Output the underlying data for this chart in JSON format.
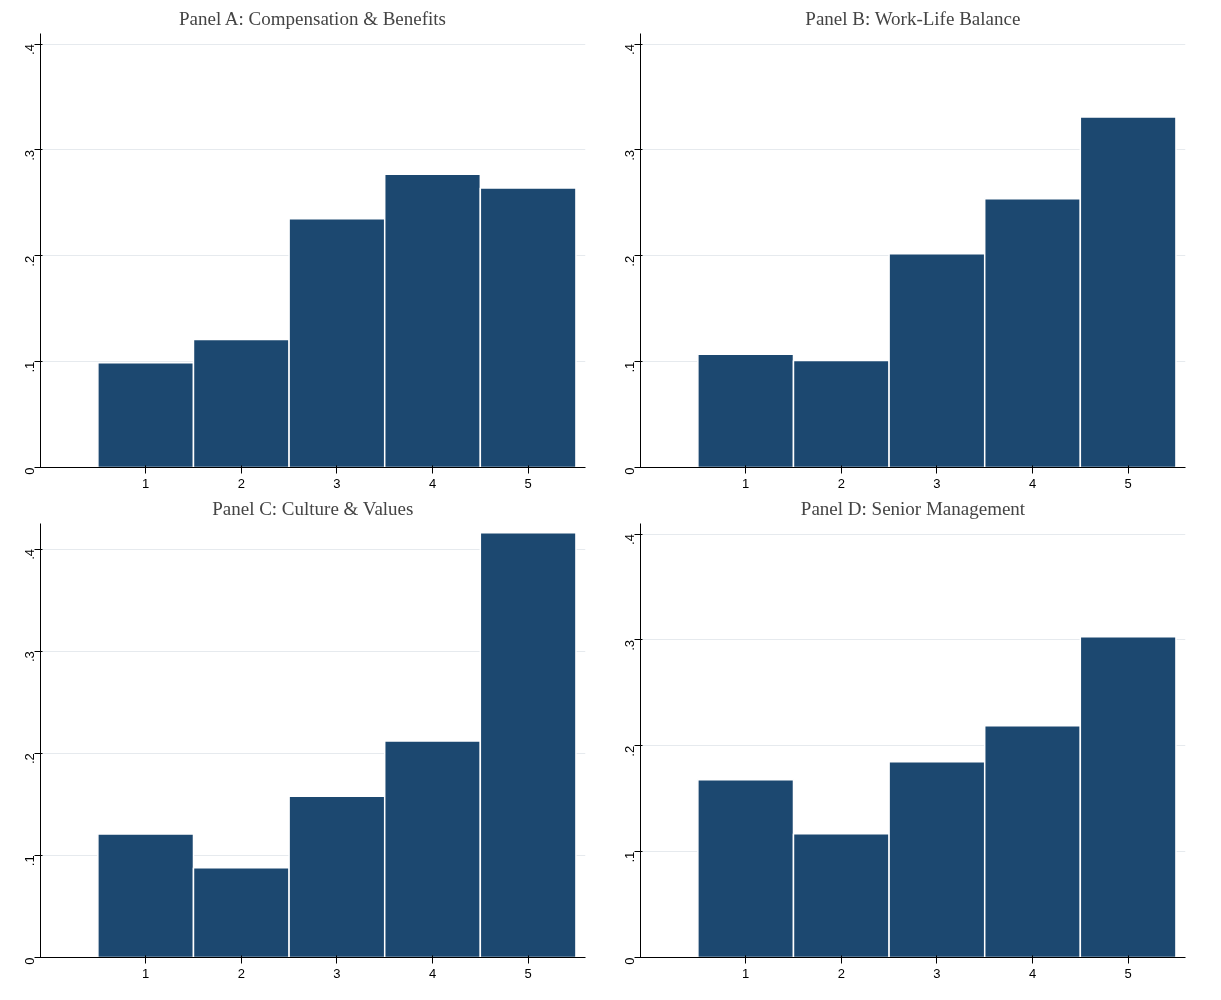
{
  "chart_data": [
    {
      "type": "histogram",
      "title": "Panel A: Compensation & Benefits",
      "bins": [
        0.5,
        1.5,
        2.5,
        3.5,
        4.5,
        5.5
      ],
      "values": [
        0.099,
        0.121,
        0.235,
        0.277,
        0.264
      ],
      "color": "#1c4870",
      "xlim": [
        -0.1,
        5.6
      ],
      "xticks": [
        1,
        2,
        3,
        4,
        5
      ],
      "ylim": [
        0,
        0.41
      ],
      "yticks": [
        0,
        {
          "value": 0.1,
          "label": ".1"
        },
        {
          "value": 0.2,
          "label": ".2"
        },
        {
          "value": 0.3,
          "label": ".3"
        },
        {
          "value": 0.4,
          "label": ".4"
        }
      ],
      "grid": "y"
    },
    {
      "type": "histogram",
      "title": "Panel B: Work-Life Balance",
      "bins": [
        0.5,
        1.5,
        2.5,
        3.5,
        4.5,
        5.5
      ],
      "values": [
        0.107,
        0.101,
        0.202,
        0.254,
        0.331
      ],
      "color": "#1c4870",
      "xlim": [
        -0.1,
        5.6
      ],
      "xticks": [
        1,
        2,
        3,
        4,
        5
      ],
      "ylim": [
        0,
        0.41
      ],
      "yticks": [
        0,
        {
          "value": 0.1,
          "label": ".1"
        },
        {
          "value": 0.2,
          "label": ".2"
        },
        {
          "value": 0.3,
          "label": ".3"
        },
        {
          "value": 0.4,
          "label": ".4"
        }
      ],
      "grid": "y"
    },
    {
      "type": "histogram",
      "title": "Panel C: Culture & Values",
      "bins": [
        0.5,
        1.5,
        2.5,
        3.5,
        4.5,
        5.5
      ],
      "values": [
        0.121,
        0.088,
        0.158,
        0.212,
        0.416
      ],
      "color": "#1c4870",
      "xlim": [
        -0.1,
        5.6
      ],
      "xticks": [
        1,
        2,
        3,
        4,
        5
      ],
      "ylim": [
        0,
        0.425
      ],
      "yticks": [
        0,
        {
          "value": 0.1,
          "label": ".1"
        },
        {
          "value": 0.2,
          "label": ".2"
        },
        {
          "value": 0.3,
          "label": ".3"
        },
        {
          "value": 0.4,
          "label": ".4"
        }
      ],
      "grid": "y"
    },
    {
      "type": "histogram",
      "title": "Panel D: Senior Management",
      "bins": [
        0.5,
        1.5,
        2.5,
        3.5,
        4.5,
        5.5
      ],
      "values": [
        0.168,
        0.117,
        0.185,
        0.219,
        0.303
      ],
      "color": "#1c4870",
      "xlim": [
        -0.1,
        5.6
      ],
      "xticks": [
        1,
        2,
        3,
        4,
        5
      ],
      "ylim": [
        0,
        0.41
      ],
      "yticks": [
        0,
        {
          "value": 0.1,
          "label": ".1"
        },
        {
          "value": 0.2,
          "label": ".2"
        },
        {
          "value": 0.3,
          "label": ".3"
        },
        {
          "value": 0.4,
          "label": ".4"
        }
      ],
      "grid": "y"
    }
  ]
}
